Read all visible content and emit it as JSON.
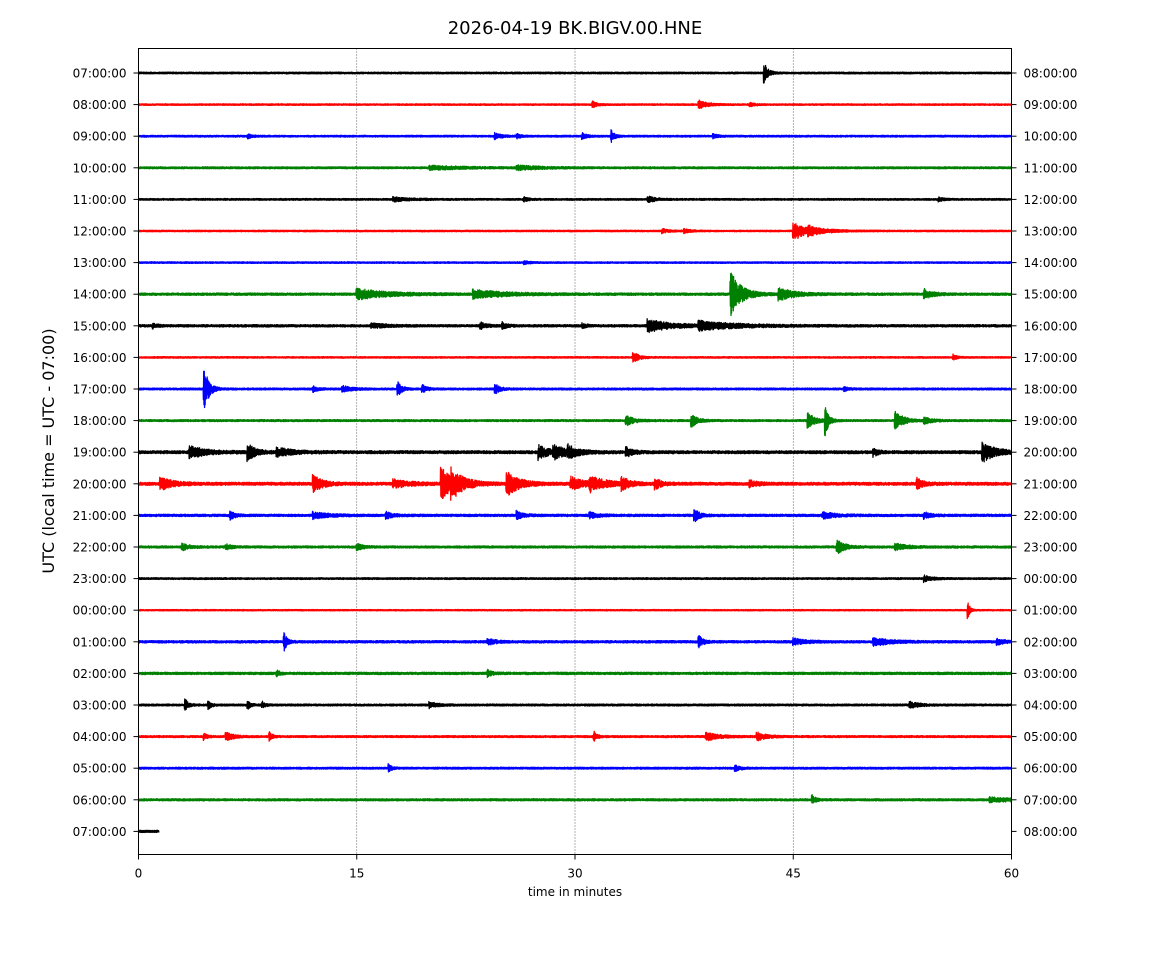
{
  "chart_data": {
    "type": "line",
    "title": "2026-04-19 BK.BIGV.00.HNE",
    "xlabel": "time in minutes",
    "ylabel": "UTC (local time = UTC - 07:00)",
    "xlim": [
      0,
      60
    ],
    "x_ticks": [
      0,
      15,
      30,
      45,
      60
    ],
    "x_tick_labels": [
      "0",
      "15",
      "30",
      "45",
      "60"
    ],
    "grid": "vertical dotted lines at 15, 30, 45",
    "left_labels": [
      "07:00:00",
      "08:00:00",
      "09:00:00",
      "10:00:00",
      "11:00:00",
      "12:00:00",
      "13:00:00",
      "14:00:00",
      "15:00:00",
      "16:00:00",
      "17:00:00",
      "18:00:00",
      "19:00:00",
      "20:00:00",
      "21:00:00",
      "22:00:00",
      "23:00:00",
      "00:00:00",
      "01:00:00",
      "02:00:00",
      "03:00:00",
      "04:00:00",
      "05:00:00",
      "06:00:00",
      "07:00:00"
    ],
    "right_labels": [
      "08:00:00",
      "09:00:00",
      "10:00:00",
      "11:00:00",
      "12:00:00",
      "13:00:00",
      "14:00:00",
      "15:00:00",
      "16:00:00",
      "17:00:00",
      "18:00:00",
      "19:00:00",
      "20:00:00",
      "21:00:00",
      "22:00:00",
      "23:00:00",
      "00:00:00",
      "01:00:00",
      "02:00:00",
      "03:00:00",
      "04:00:00",
      "05:00:00",
      "06:00:00",
      "07:00:00",
      "08:00:00"
    ],
    "colors": [
      "#000000",
      "#ff0000",
      "#0000ff",
      "#008000"
    ],
    "series": [
      {
        "noise": 0.9,
        "end": 60,
        "events": [
          [
            43,
            10,
            0.25
          ]
        ]
      },
      {
        "noise": 0.8,
        "end": 60,
        "events": [
          [
            31.2,
            3,
            0.3
          ],
          [
            38.5,
            4,
            0.6
          ],
          [
            42,
            2,
            0.3
          ]
        ]
      },
      {
        "noise": 0.9,
        "end": 60,
        "events": [
          [
            7.5,
            2,
            0.3
          ],
          [
            24.5,
            3,
            0.4
          ],
          [
            26,
            2,
            0.3
          ],
          [
            30.5,
            3,
            0.3
          ],
          [
            32.5,
            6,
            0.2
          ],
          [
            39.5,
            2,
            0.3
          ]
        ]
      },
      {
        "noise": 1.0,
        "end": 60,
        "events": [
          [
            20,
            2,
            2.0
          ],
          [
            26,
            2,
            1.5
          ]
        ]
      },
      {
        "noise": 0.9,
        "end": 60,
        "events": [
          [
            17.5,
            2,
            1.0
          ],
          [
            26.5,
            2,
            0.3
          ],
          [
            35,
            3,
            0.5
          ],
          [
            55,
            2,
            0.3
          ]
        ]
      },
      {
        "noise": 0.8,
        "end": 60,
        "events": [
          [
            36,
            2,
            0.4
          ],
          [
            37.5,
            2,
            0.4
          ],
          [
            45,
            10,
            0.8
          ],
          [
            46,
            3,
            1.2
          ]
        ]
      },
      {
        "noise": 0.8,
        "end": 60,
        "events": [
          [
            26.5,
            2,
            0.3
          ]
        ]
      },
      {
        "noise": 1.2,
        "end": 60,
        "events": [
          [
            15,
            5,
            2.0
          ],
          [
            23,
            4,
            2.0
          ],
          [
            40.7,
            22,
            0.7
          ],
          [
            44,
            6,
            1.0
          ],
          [
            54,
            5,
            0.5
          ]
        ]
      },
      {
        "noise": 1.2,
        "end": 60,
        "events": [
          [
            1,
            2,
            0.3
          ],
          [
            16,
            2,
            1.0
          ],
          [
            23.5,
            3,
            0.4
          ],
          [
            25,
            3,
            0.3
          ],
          [
            30.5,
            2,
            0.3
          ],
          [
            35,
            6,
            1.5
          ],
          [
            38.5,
            4,
            2.5
          ]
        ]
      },
      {
        "noise": 0.8,
        "end": 60,
        "events": [
          [
            34,
            5,
            0.4
          ],
          [
            56,
            3,
            0.2
          ]
        ]
      },
      {
        "noise": 1.0,
        "end": 60,
        "events": [
          [
            4.5,
            24,
            0.3
          ],
          [
            12,
            3,
            0.3
          ],
          [
            14,
            3,
            0.6
          ],
          [
            17.8,
            7,
            0.3
          ],
          [
            19.5,
            4,
            0.3
          ],
          [
            24.5,
            5,
            0.3
          ],
          [
            48.5,
            2,
            0.3
          ]
        ]
      },
      {
        "noise": 1.0,
        "end": 60,
        "events": [
          [
            33.5,
            5,
            0.5
          ],
          [
            38,
            6,
            0.4
          ],
          [
            46,
            7,
            0.5
          ],
          [
            47.2,
            17,
            0.2
          ],
          [
            52,
            10,
            0.5
          ],
          [
            54,
            3,
            0.5
          ]
        ]
      },
      {
        "noise": 1.5,
        "end": 60,
        "events": [
          [
            3.5,
            6,
            1.0
          ],
          [
            7.5,
            8,
            0.5
          ],
          [
            9.5,
            4,
            1.0
          ],
          [
            27.5,
            7,
            0.6
          ],
          [
            28.5,
            6,
            1.0
          ],
          [
            29.5,
            5,
            0.5
          ],
          [
            33.5,
            5,
            0.4
          ],
          [
            50.5,
            4,
            0.3
          ],
          [
            58,
            10,
            0.8
          ]
        ]
      },
      {
        "noise": 1.5,
        "end": 60,
        "events": [
          [
            1.5,
            6,
            0.8
          ],
          [
            12,
            8,
            0.6
          ],
          [
            17.5,
            4,
            1.0
          ],
          [
            20.8,
            16,
            0.8
          ],
          [
            21.5,
            10,
            0.8
          ],
          [
            25.3,
            12,
            0.8
          ],
          [
            29.7,
            7,
            0.8
          ],
          [
            31,
            7,
            1.0
          ],
          [
            33.2,
            6,
            0.5
          ],
          [
            35.5,
            5,
            0.4
          ],
          [
            42,
            3,
            0.5
          ],
          [
            53.5,
            5,
            0.4
          ]
        ]
      },
      {
        "noise": 1.2,
        "end": 60,
        "events": [
          [
            6.3,
            4,
            0.3
          ],
          [
            12,
            3,
            1.0
          ],
          [
            17,
            3,
            0.5
          ],
          [
            26,
            4,
            0.4
          ],
          [
            31,
            3,
            0.5
          ],
          [
            38.2,
            7,
            0.3
          ],
          [
            47,
            3,
            0.8
          ],
          [
            54,
            3,
            0.4
          ]
        ]
      },
      {
        "noise": 1.1,
        "end": 60,
        "events": [
          [
            3,
            3,
            0.5
          ],
          [
            6,
            3,
            0.3
          ],
          [
            15,
            3,
            0.4
          ],
          [
            48,
            7,
            0.5
          ],
          [
            52,
            3,
            0.8
          ]
        ]
      },
      {
        "noise": 0.9,
        "end": 60,
        "events": [
          [
            54,
            3,
            0.5
          ]
        ]
      },
      {
        "noise": 0.7,
        "end": 60,
        "events": [
          [
            57,
            8,
            0.15
          ]
        ]
      },
      {
        "noise": 1.2,
        "end": 60,
        "events": [
          [
            10,
            9,
            0.2
          ],
          [
            24,
            3,
            0.5
          ],
          [
            38.5,
            6,
            0.3
          ],
          [
            45,
            3,
            0.8
          ],
          [
            50.5,
            4,
            1.0
          ],
          [
            59,
            3,
            0.5
          ]
        ]
      },
      {
        "noise": 1.2,
        "end": 60,
        "events": [
          [
            9.5,
            3,
            0.2
          ],
          [
            24,
            3,
            0.3
          ]
        ]
      },
      {
        "noise": 1.0,
        "end": 60,
        "events": [
          [
            3.2,
            6,
            0.2
          ],
          [
            4.8,
            4,
            0.2
          ],
          [
            7.5,
            4,
            0.2
          ],
          [
            8.5,
            3,
            0.2
          ],
          [
            20,
            3,
            0.5
          ],
          [
            53,
            3,
            0.6
          ]
        ]
      },
      {
        "noise": 1.0,
        "end": 60,
        "events": [
          [
            4.5,
            3,
            0.2
          ],
          [
            6,
            4,
            0.5
          ],
          [
            9,
            4,
            0.2
          ],
          [
            31.3,
            5,
            0.2
          ],
          [
            39,
            4,
            0.8
          ],
          [
            42.5,
            4,
            0.6
          ]
        ]
      },
      {
        "noise": 1.0,
        "end": 60,
        "events": [
          [
            17.2,
            4,
            0.2
          ],
          [
            41,
            3,
            0.3
          ]
        ]
      },
      {
        "noise": 1.1,
        "end": 60,
        "events": [
          [
            46.3,
            5,
            0.2
          ],
          [
            58.5,
            2,
            2.0
          ]
        ]
      },
      {
        "noise": 1.1,
        "end": 1.4,
        "events": []
      }
    ]
  }
}
